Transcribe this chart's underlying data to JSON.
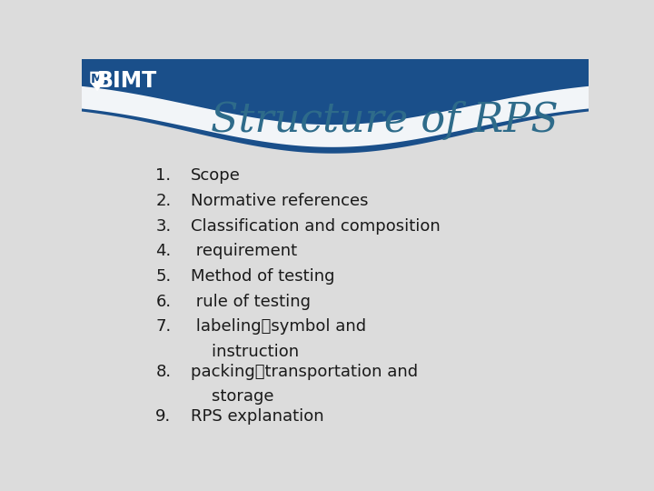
{
  "title": "Structure of RPS",
  "title_color": "#2e6b8a",
  "title_fontsize": 32,
  "background_color": "#dcdcdc",
  "header_color": "#1a4f8a",
  "items": [
    {
      "num": "1.",
      "text": "Scope"
    },
    {
      "num": "2.",
      "text": "Normative references"
    },
    {
      "num": "3.",
      "text": "Classification and composition"
    },
    {
      "num": "4.",
      "text": " requirement"
    },
    {
      "num": "5.",
      "text": "Method of testing"
    },
    {
      "num": "6.",
      "text": " rule of testing"
    },
    {
      "num": "7.",
      "text": " labeling、symbol and"
    },
    {
      "num": "",
      "text": "    instruction"
    },
    {
      "num": "8.",
      "text": "packing、transportation and"
    },
    {
      "num": "",
      "text": "    storage"
    },
    {
      "num": "9.",
      "text": "RPS explanation"
    }
  ],
  "item_fontsize": 13,
  "item_color": "#1a1a1a",
  "bimt_text": "BIMT",
  "bimt_color": "#ffffff"
}
